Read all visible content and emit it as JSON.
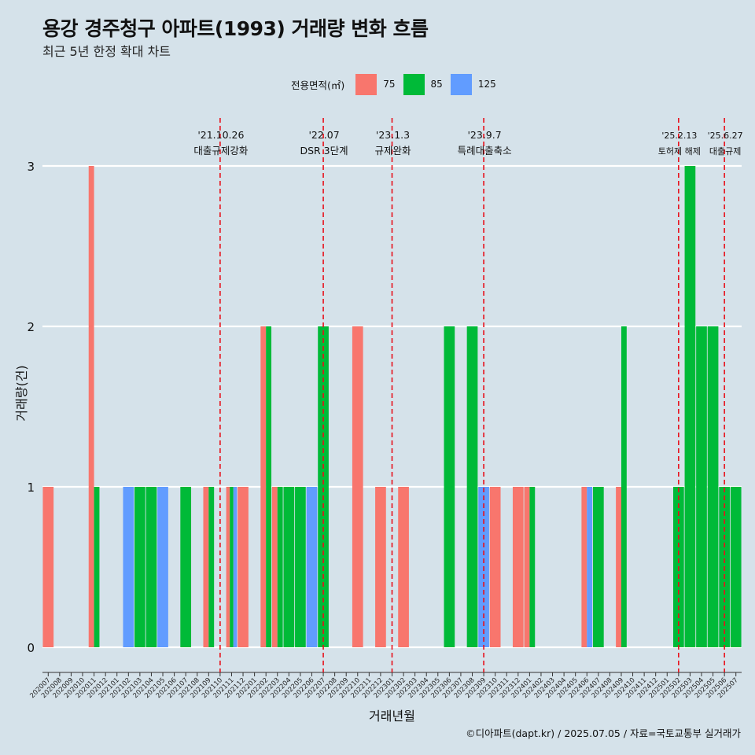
{
  "header": {
    "title": "용강 경주청구 아파트(1993) 거래량 변화 흐름",
    "subtitle": "최근 5년 한정 확대 차트"
  },
  "legend": {
    "title": "전용면적(㎡)",
    "items": [
      {
        "label": "75",
        "color": "#f8766d"
      },
      {
        "label": "85",
        "color": "#00ba38"
      },
      {
        "label": "125",
        "color": "#619cff"
      }
    ]
  },
  "footer": {
    "credit": "©디아파트(dapt.kr) / 2025.07.05 / 자료=국토교통부 실거래가"
  },
  "chart_data": {
    "type": "bar",
    "stacking": "dodge",
    "xlabel": "거래년월",
    "ylabel": "거래량(건)",
    "ylim": [
      0,
      3
    ],
    "y_ticks": [
      "0",
      "1",
      "2",
      "3"
    ],
    "grid": "horizontal",
    "legend_position": "top",
    "categories": [
      "202007",
      "202008",
      "202009",
      "202010",
      "202011",
      "202012",
      "202101",
      "202102",
      "202103",
      "202104",
      "202105",
      "202106",
      "202107",
      "202108",
      "202109",
      "202110",
      "202111",
      "202112",
      "202201",
      "202202",
      "202203",
      "202204",
      "202205",
      "202206",
      "202207",
      "202208",
      "202209",
      "202210",
      "202211",
      "202212",
      "202301",
      "202302",
      "202303",
      "202304",
      "202305",
      "202306",
      "202307",
      "202308",
      "202309",
      "202310",
      "202311",
      "202312",
      "202401",
      "202402",
      "202403",
      "202404",
      "202405",
      "202406",
      "202407",
      "202408",
      "202409",
      "202410",
      "202411",
      "202412",
      "202501",
      "202502",
      "202503",
      "202504",
      "202505",
      "202506",
      "202507"
    ],
    "series": [
      {
        "name": "75",
        "values": [
          1,
          0,
          0,
          0,
          3,
          0,
          0,
          0,
          0,
          0,
          0,
          0,
          0,
          0,
          1,
          0,
          1,
          1,
          0,
          2,
          1,
          0,
          0,
          0,
          0,
          0,
          0,
          2,
          0,
          1,
          0,
          1,
          0,
          0,
          0,
          0,
          0,
          0,
          0,
          1,
          0,
          1,
          1,
          0,
          0,
          0,
          0,
          1,
          0,
          0,
          1,
          0,
          0,
          0,
          0,
          0,
          0,
          0,
          0,
          0,
          0
        ]
      },
      {
        "name": "85",
        "values": [
          0,
          0,
          0,
          0,
          1,
          0,
          0,
          0,
          1,
          1,
          0,
          0,
          1,
          0,
          1,
          0,
          1,
          0,
          0,
          2,
          1,
          1,
          1,
          0,
          2,
          0,
          0,
          0,
          0,
          0,
          0,
          0,
          0,
          0,
          0,
          2,
          0,
          2,
          0,
          0,
          0,
          0,
          1,
          0,
          0,
          0,
          0,
          0,
          1,
          0,
          2,
          0,
          0,
          0,
          0,
          1,
          3,
          2,
          2,
          1,
          1
        ]
      },
      {
        "name": "125",
        "values": [
          0,
          0,
          0,
          0,
          0,
          0,
          0,
          1,
          0,
          0,
          1,
          0,
          0,
          0,
          0,
          0,
          1,
          0,
          0,
          0,
          0,
          0,
          0,
          1,
          0,
          0,
          0,
          0,
          0,
          0,
          0,
          0,
          0,
          0,
          0,
          0,
          0,
          0,
          1,
          0,
          0,
          0,
          0,
          0,
          0,
          0,
          0,
          1,
          0,
          0,
          0,
          0,
          0,
          0,
          0,
          0,
          0,
          0,
          0,
          0,
          0
        ]
      }
    ],
    "annotations": [
      {
        "at": "202110",
        "date": "'21.10.26",
        "label": "대출규제강화"
      },
      {
        "at": "202207",
        "date": "'22.07",
        "label": "DSR 3단계"
      },
      {
        "at": "202301",
        "date": "'23.1.3",
        "label": "규제완화"
      },
      {
        "at": "202309",
        "date": "'23.9.7",
        "label": "특례대출축소"
      },
      {
        "at": "202502",
        "date": "'25.2.13",
        "label": "토허제 해제"
      },
      {
        "at": "202506",
        "date": "'25.6.27",
        "label": "대출규제"
      }
    ]
  }
}
